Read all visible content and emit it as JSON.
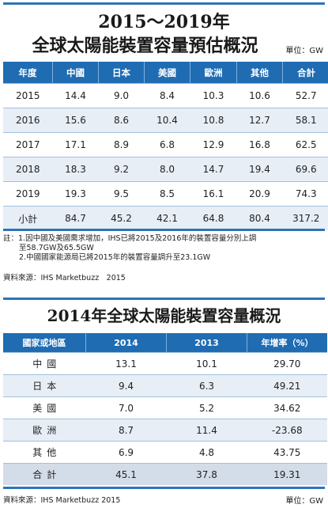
{
  "chart1": {
    "title_line1": "2015～2019年",
    "title_line2": "全球太陽能裝置容量預估概況",
    "unit": "單位：GW",
    "headers": [
      "年度",
      "中國",
      "日本",
      "美國",
      "歐洲",
      "其他",
      "合計"
    ],
    "rows": [
      [
        "2015",
        "14.4",
        "9.0",
        "8.4",
        "10.3",
        "10.6",
        "52.7"
      ],
      [
        "2016",
        "15.6",
        "8.6",
        "10.4",
        "10.8",
        "12.7",
        "58.1"
      ],
      [
        "2017",
        "17.1",
        "8.9",
        "6.8",
        "12.9",
        "16.8",
        "62.5"
      ],
      [
        "2018",
        "18.3",
        "9.2",
        "8.0",
        "14.7",
        "19.4",
        "69.6"
      ],
      [
        "2019",
        "19.3",
        "9.5",
        "8.5",
        "16.1",
        "20.9",
        "74.3"
      ],
      [
        "小計",
        "84.7",
        "45.2",
        "42.1",
        "64.8",
        "80.4",
        "317.2"
      ]
    ],
    "note_line1": "註：1.因中國及美國需求增加，IHS已將2015及2016年的裝置容量分別上調",
    "note_line2": "至58.7GW及65.5GW",
    "note_line3": "2.中國國家能源局已將2015年的裝置容量調升至23.1GW",
    "source": "資料來源：IHS Marketbuzz　2015"
  },
  "chart2": {
    "title": "2014年全球太陽能裝置容量概況",
    "headers": [
      "國家或地區",
      "2014",
      "2013",
      "年增率（%）"
    ],
    "rows": [
      [
        "中國",
        "13.1",
        "10.1",
        "29.70"
      ],
      [
        "日本",
        "9.4",
        "6.3",
        "49.21"
      ],
      [
        "美國",
        "7.0",
        "5.2",
        "34.62"
      ],
      [
        "歐洲",
        "8.7",
        "11.4",
        "-23.68"
      ],
      [
        "其他",
        "6.9",
        "4.8",
        "43.75"
      ],
      [
        "合計",
        "45.1",
        "37.8",
        "19.31"
      ]
    ],
    "source": "資料來源：IHS Marketbuzz 2015",
    "unit": "單位：GW"
  }
}
